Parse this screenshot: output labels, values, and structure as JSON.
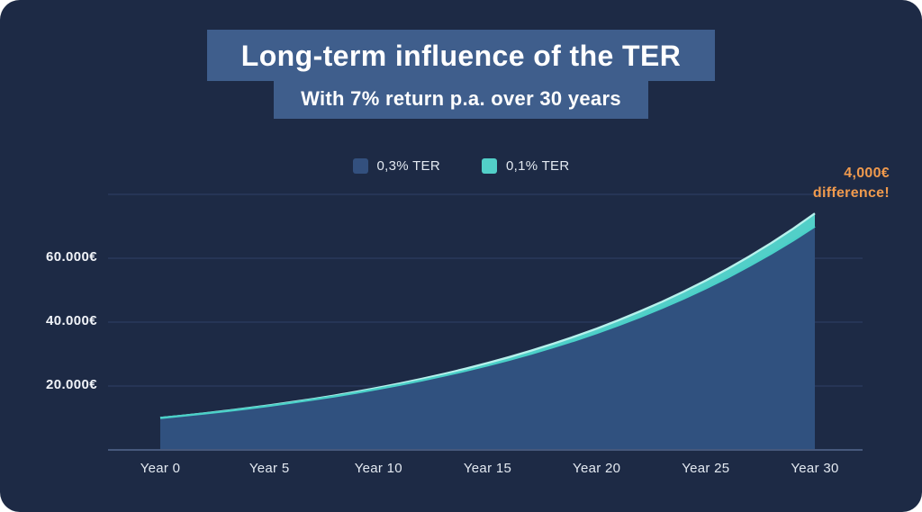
{
  "page": {
    "background": "#1d2a45",
    "banner_color": "#3f5e8c"
  },
  "header": {
    "title": "Long-term influence of the TER",
    "subtitle": "With 7% return p.a. over 30 years"
  },
  "legend": [
    {
      "label": "0,3% TER",
      "color": "#33507e"
    },
    {
      "label": "0,1% TER",
      "color": "#52cfc8"
    }
  ],
  "annotation": {
    "line1": "4,000€",
    "line2": "difference!",
    "color": "#f09a4d"
  },
  "chart_data": {
    "type": "area",
    "title": "Long-term influence of the TER",
    "subtitle": "With 7% return p.a. over 30 years",
    "legend_position": "top-center",
    "grid": true,
    "ylim": [
      0,
      80000
    ],
    "grid_values": [
      20000,
      40000,
      60000,
      80000
    ],
    "y_ticks": [
      {
        "value": 20000,
        "label": "20.000€"
      },
      {
        "value": 40000,
        "label": "40.000€"
      },
      {
        "value": 60000,
        "label": "60.000€"
      }
    ],
    "x_ticks": [
      {
        "year": 0,
        "label": "Year 0"
      },
      {
        "year": 5,
        "label": "Year 5"
      },
      {
        "year": 10,
        "label": "Year 10"
      },
      {
        "year": 15,
        "label": "Year 15"
      },
      {
        "year": 20,
        "label": "Year 20"
      },
      {
        "year": 25,
        "label": "Year 25"
      },
      {
        "year": 30,
        "label": "Year 30"
      }
    ],
    "x_years": [
      0,
      1,
      2,
      3,
      4,
      5,
      6,
      7,
      8,
      9,
      10,
      11,
      12,
      13,
      14,
      15,
      16,
      17,
      18,
      19,
      20,
      21,
      22,
      23,
      24,
      25,
      26,
      27,
      28,
      29,
      30
    ],
    "series": [
      {
        "name": "0,3% TER",
        "fill": "#30517f",
        "stroke": "#4ad0c8",
        "values": [
          10000,
          10670,
          11385,
          12148,
          12962,
          13830,
          14757,
          15745,
          16800,
          17926,
          19127,
          20408,
          21776,
          23235,
          24791,
          26452,
          28225,
          30116,
          32134,
          34287,
          36584,
          39035,
          41650,
          44441,
          47418,
          50595,
          53985,
          57602,
          61462,
          65580,
          69973
        ]
      },
      {
        "name": "0,1% TER",
        "fill": "#52cfc8",
        "stroke": "#b7f1ec",
        "values": [
          10000,
          10690,
          11428,
          12216,
          13059,
          13960,
          14923,
          15953,
          17054,
          18231,
          19488,
          20833,
          22271,
          23807,
          25450,
          27206,
          29083,
          31090,
          33235,
          35528,
          37980,
          40601,
          43402,
          46397,
          49598,
          53020,
          56679,
          60590,
          64770,
          69239,
          74017
        ]
      }
    ],
    "annotation": "4,000€ difference!"
  }
}
